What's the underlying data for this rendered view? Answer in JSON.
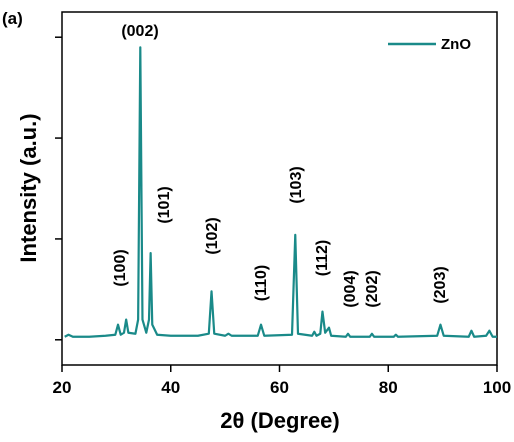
{
  "chart_data": {
    "type": "line",
    "panel_label": "(a)",
    "xlabel": "2θ (Degree)",
    "ylabel": "Intensity (a.u.)",
    "xlim": [
      20,
      100
    ],
    "xticks": [
      20,
      40,
      60,
      80,
      100
    ],
    "ylim": [
      -0.25,
      3.25
    ],
    "yticks": [
      0,
      1,
      2,
      3
    ],
    "legend": "upper right",
    "annotations": [
      "(002)",
      "(100)",
      "(101)",
      "(102)",
      "(110)",
      "(103)",
      "(112)",
      "(004)",
      "(202)",
      "(203)"
    ],
    "series": [
      {
        "name": "ZnO",
        "color": "#1a8a89",
        "x": [
          20.5,
          21.2,
          22,
          25,
          28,
          29.8,
          30.3,
          30.8,
          31.4,
          31.8,
          32.2,
          33.5,
          34.0,
          34.4,
          34.8,
          35.5,
          36.0,
          36.3,
          36.6,
          37.5,
          40,
          45,
          47.0,
          47.5,
          48.0,
          50,
          50.6,
          51.2,
          56.0,
          56.6,
          57.2,
          62.3,
          62.9,
          63.4,
          66.0,
          66.4,
          66.8,
          67.5,
          67.9,
          68.4,
          69.1,
          69.5,
          72.2,
          72.6,
          73.0,
          76.6,
          77.0,
          77.4,
          81.0,
          81.4,
          81.8,
          89.0,
          89.6,
          90.2,
          94.8,
          95.3,
          95.8,
          98.0,
          98.6,
          99.2,
          100
        ],
        "values": [
          0.03,
          0.05,
          0.03,
          0.03,
          0.04,
          0.05,
          0.15,
          0.05,
          0.07,
          0.2,
          0.07,
          0.06,
          0.2,
          2.9,
          0.2,
          0.07,
          0.2,
          0.86,
          0.15,
          0.05,
          0.04,
          0.04,
          0.06,
          0.48,
          0.06,
          0.04,
          0.06,
          0.04,
          0.04,
          0.15,
          0.04,
          0.05,
          1.04,
          0.06,
          0.04,
          0.08,
          0.04,
          0.06,
          0.28,
          0.07,
          0.12,
          0.04,
          0.03,
          0.06,
          0.03,
          0.03,
          0.06,
          0.03,
          0.03,
          0.05,
          0.03,
          0.04,
          0.15,
          0.04,
          0.03,
          0.09,
          0.03,
          0.04,
          0.09,
          0.03,
          0.03
        ]
      }
    ]
  }
}
